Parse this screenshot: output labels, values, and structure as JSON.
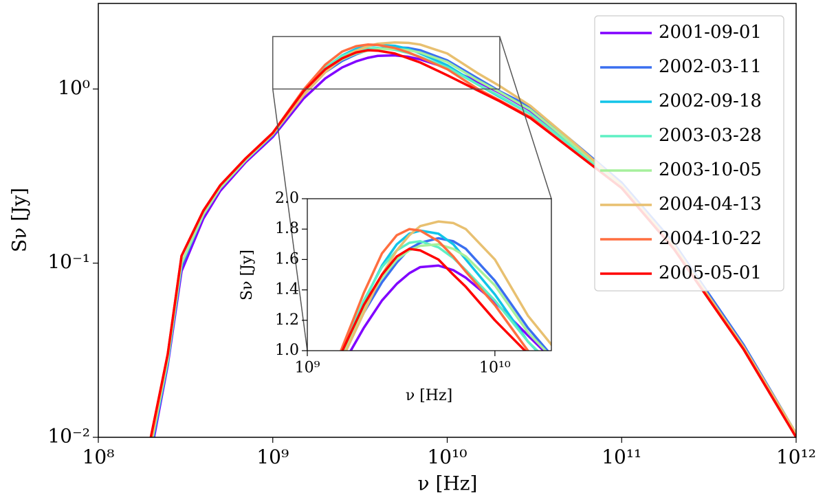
{
  "chart_data": {
    "type": "line",
    "xlabel": "ν [Hz]",
    "ylabel": "Sν [Jy]",
    "xscale": "log",
    "yscale": "log",
    "xlim": [
      100000000.0,
      1000000000000.0
    ],
    "ylim": [
      0.01,
      3.1
    ],
    "xticks": [
      {
        "value": 100000000.0,
        "label": "10⁸"
      },
      {
        "value": 1000000000.0,
        "label": "10⁹"
      },
      {
        "value": 10000000000.0,
        "label": "10¹⁰"
      },
      {
        "value": 100000000000.0,
        "label": "10¹¹"
      },
      {
        "value": 1000000000000.0,
        "label": "10¹²"
      }
    ],
    "yticks": [
      {
        "value": 0.01,
        "label": "10⁻²"
      },
      {
        "value": 0.1,
        "label": "10⁻¹"
      },
      {
        "value": 1,
        "label": "10⁰"
      }
    ],
    "legend": "upper right",
    "x": [
      200000000.0,
      250000000.0,
      300000000.0,
      400000000.0,
      500000000.0,
      700000000.0,
      1000000000.0,
      1500000000.0,
      2000000000.0,
      2500000000.0,
      3000000000.0,
      3500000000.0,
      4000000000.0,
      5000000000.0,
      6000000000.0,
      7000000000.0,
      10000000000.0,
      15000000000.0,
      20000000000.0,
      30000000000.0,
      50000000000.0,
      100000000000.0,
      200000000000.0,
      500000000000.0,
      1000000000000.0
    ],
    "series": [
      {
        "name": "2001-09-01",
        "color": "#8000ff",
        "values": [
          0.008,
          0.026,
          0.09,
          0.18,
          0.26,
          0.38,
          0.53,
          0.88,
          1.15,
          1.33,
          1.44,
          1.51,
          1.55,
          1.56,
          1.53,
          1.48,
          1.32,
          1.1,
          0.95,
          0.75,
          0.5,
          0.28,
          0.125,
          0.033,
          0.0105
        ]
      },
      {
        "name": "2002-03-11",
        "color": "#3a6ff0",
        "values": [
          0.009,
          0.027,
          0.095,
          0.19,
          0.27,
          0.39,
          0.54,
          0.92,
          1.25,
          1.45,
          1.58,
          1.67,
          1.71,
          1.74,
          1.72,
          1.67,
          1.46,
          1.15,
          0.97,
          0.79,
          0.52,
          0.29,
          0.13,
          0.034,
          0.0105
        ]
      },
      {
        "name": "2002-09-18",
        "color": "#12c4e8",
        "values": [
          0.0085,
          0.027,
          0.1,
          0.19,
          0.27,
          0.39,
          0.55,
          0.95,
          1.32,
          1.56,
          1.7,
          1.77,
          1.79,
          1.77,
          1.7,
          1.6,
          1.37,
          1.06,
          0.9,
          0.72,
          0.48,
          0.27,
          0.12,
          0.032,
          0.01
        ]
      },
      {
        "name": "2003-03-28",
        "color": "#5ef0c4",
        "values": [
          0.009,
          0.028,
          0.1,
          0.19,
          0.27,
          0.39,
          0.55,
          0.97,
          1.33,
          1.55,
          1.66,
          1.71,
          1.72,
          1.68,
          1.61,
          1.53,
          1.33,
          1.06,
          0.91,
          0.72,
          0.48,
          0.27,
          0.12,
          0.032,
          0.01
        ]
      },
      {
        "name": "2003-10-05",
        "color": "#a6f09c",
        "values": [
          0.009,
          0.028,
          0.1,
          0.19,
          0.27,
          0.39,
          0.55,
          0.95,
          1.28,
          1.48,
          1.6,
          1.66,
          1.69,
          1.7,
          1.67,
          1.62,
          1.43,
          1.12,
          0.96,
          0.76,
          0.5,
          0.28,
          0.125,
          0.033,
          0.0105
        ]
      },
      {
        "name": "2004-04-13",
        "color": "#e8c070",
        "values": [
          0.009,
          0.03,
          0.11,
          0.2,
          0.28,
          0.4,
          0.55,
          0.92,
          1.25,
          1.5,
          1.66,
          1.76,
          1.82,
          1.85,
          1.84,
          1.8,
          1.6,
          1.23,
          1.04,
          0.8,
          0.52,
          0.28,
          0.125,
          0.033,
          0.0105
        ]
      },
      {
        "name": "2004-10-22",
        "color": "#ff6e40",
        "values": [
          0.01,
          0.03,
          0.11,
          0.2,
          0.28,
          0.4,
          0.56,
          0.99,
          1.38,
          1.64,
          1.76,
          1.8,
          1.79,
          1.72,
          1.62,
          1.52,
          1.3,
          1.0,
          0.86,
          0.69,
          0.46,
          0.27,
          0.12,
          0.032,
          0.01
        ]
      },
      {
        "name": "2005-05-01",
        "color": "#ff0000",
        "values": [
          0.01,
          0.03,
          0.11,
          0.2,
          0.28,
          0.4,
          0.56,
          0.97,
          1.3,
          1.5,
          1.62,
          1.67,
          1.66,
          1.6,
          1.5,
          1.42,
          1.2,
          0.98,
          0.85,
          0.68,
          0.46,
          0.27,
          0.12,
          0.032,
          0.01
        ]
      }
    ],
    "inset": {
      "xlabel": "ν [Hz]",
      "ylabel": "Sν [Jy]",
      "xscale": "log",
      "yscale": "linear",
      "xlim": [
        1000000000.0,
        20000000000.0
      ],
      "ylim": [
        1.0,
        2.0
      ],
      "xticks": [
        {
          "value": 1000000000.0,
          "label": "10⁹"
        },
        {
          "value": 10000000000.0,
          "label": "10¹⁰"
        }
      ],
      "yticks": [
        {
          "value": 1.0,
          "label": "1.0"
        },
        1.2,
        1.4,
        1.6,
        1.8,
        {
          "value": 2.0,
          "label": "2.0"
        }
      ]
    }
  }
}
